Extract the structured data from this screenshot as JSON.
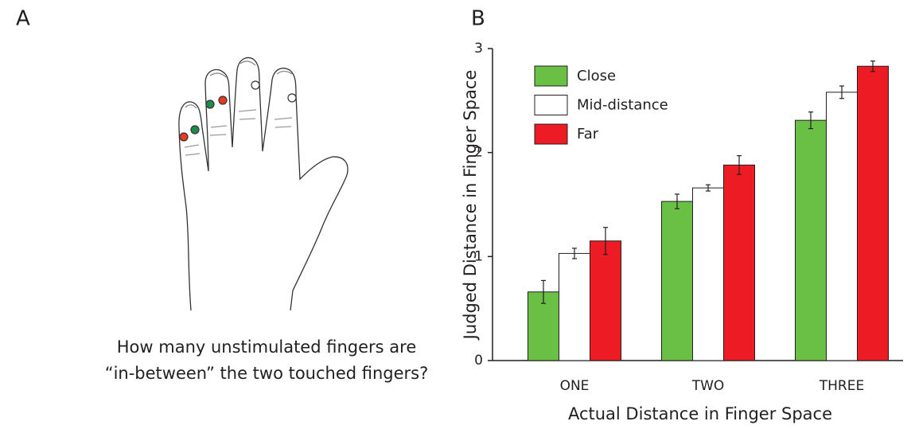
{
  "panel_labels": [
    "A",
    "B"
  ],
  "caption_lines": [
    "How many unstimulated fingers are",
    "“in-between” the two touched fingers?"
  ],
  "chart_data": {
    "type": "bar",
    "y_label": "Judged Distance in Finger Space",
    "x_label": "Actual Distance in Finger Space",
    "categories": [
      "ONE",
      "TWO",
      "THREE"
    ],
    "series": [
      {
        "name": "Close",
        "color": "#6abf45",
        "values": [
          0.66,
          1.53,
          2.31
        ],
        "errors": [
          0.11,
          0.07,
          0.08
        ]
      },
      {
        "name": "Mid-distance",
        "color": "#ffffff",
        "values": [
          1.03,
          1.66,
          2.58
        ],
        "errors": [
          0.05,
          0.03,
          0.06
        ]
      },
      {
        "name": "Far",
        "color": "#ed1c24",
        "values": [
          1.15,
          1.88,
          2.83
        ],
        "errors": [
          0.13,
          0.09,
          0.05
        ]
      }
    ],
    "ylim": [
      0,
      3
    ],
    "yticks": [
      0,
      1,
      2,
      3
    ],
    "grid": false,
    "legend": "upper left"
  }
}
